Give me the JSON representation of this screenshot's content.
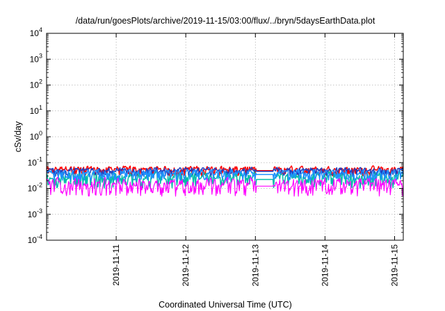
{
  "chart_data": {
    "type": "line",
    "title": "/data/run/goesPlots/archive/2019-11-15/03:00/flux/../bryn/5daysEarthData.plot",
    "xlabel": "Coordinated Universal Time (UTC)",
    "ylabel": "cSv/day",
    "yscale": "log",
    "ylim": [
      0.0001,
      10000
    ],
    "y_ticks": [
      {
        "base": "10",
        "exp": "-4"
      },
      {
        "base": "10",
        "exp": "-3"
      },
      {
        "base": "10",
        "exp": "-2"
      },
      {
        "base": "10",
        "exp": "-1"
      },
      {
        "base": "10",
        "exp": "0"
      },
      {
        "base": "10",
        "exp": "1"
      },
      {
        "base": "10",
        "exp": "2"
      },
      {
        "base": "10",
        "exp": "3"
      },
      {
        "base": "10",
        "exp": "4"
      }
    ],
    "xlim": [
      "2019-11-10 00:00",
      "2019-11-15 03:00"
    ],
    "x_ticks": [
      "2019-11-11",
      "2019-11-12",
      "2019-11-13",
      "2019-11-14",
      "2019-11-15"
    ],
    "grid": true,
    "legend": "none",
    "data_gap": [
      "2019-11-13 00:10",
      "2019-11-13 06:15"
    ],
    "series": [
      {
        "color": "#ff0000",
        "typical_range": [
          0.03,
          0.08
        ]
      },
      {
        "color": "#1f3fbf",
        "typical_range": [
          0.03,
          0.07
        ]
      },
      {
        "color": "#00bbaa",
        "typical_range": [
          0.01,
          0.05
        ]
      },
      {
        "color": "#1e90ff",
        "typical_range": [
          0.02,
          0.06
        ]
      },
      {
        "color": "#ff00ff",
        "typical_range": [
          0.005,
          0.03
        ]
      }
    ]
  }
}
